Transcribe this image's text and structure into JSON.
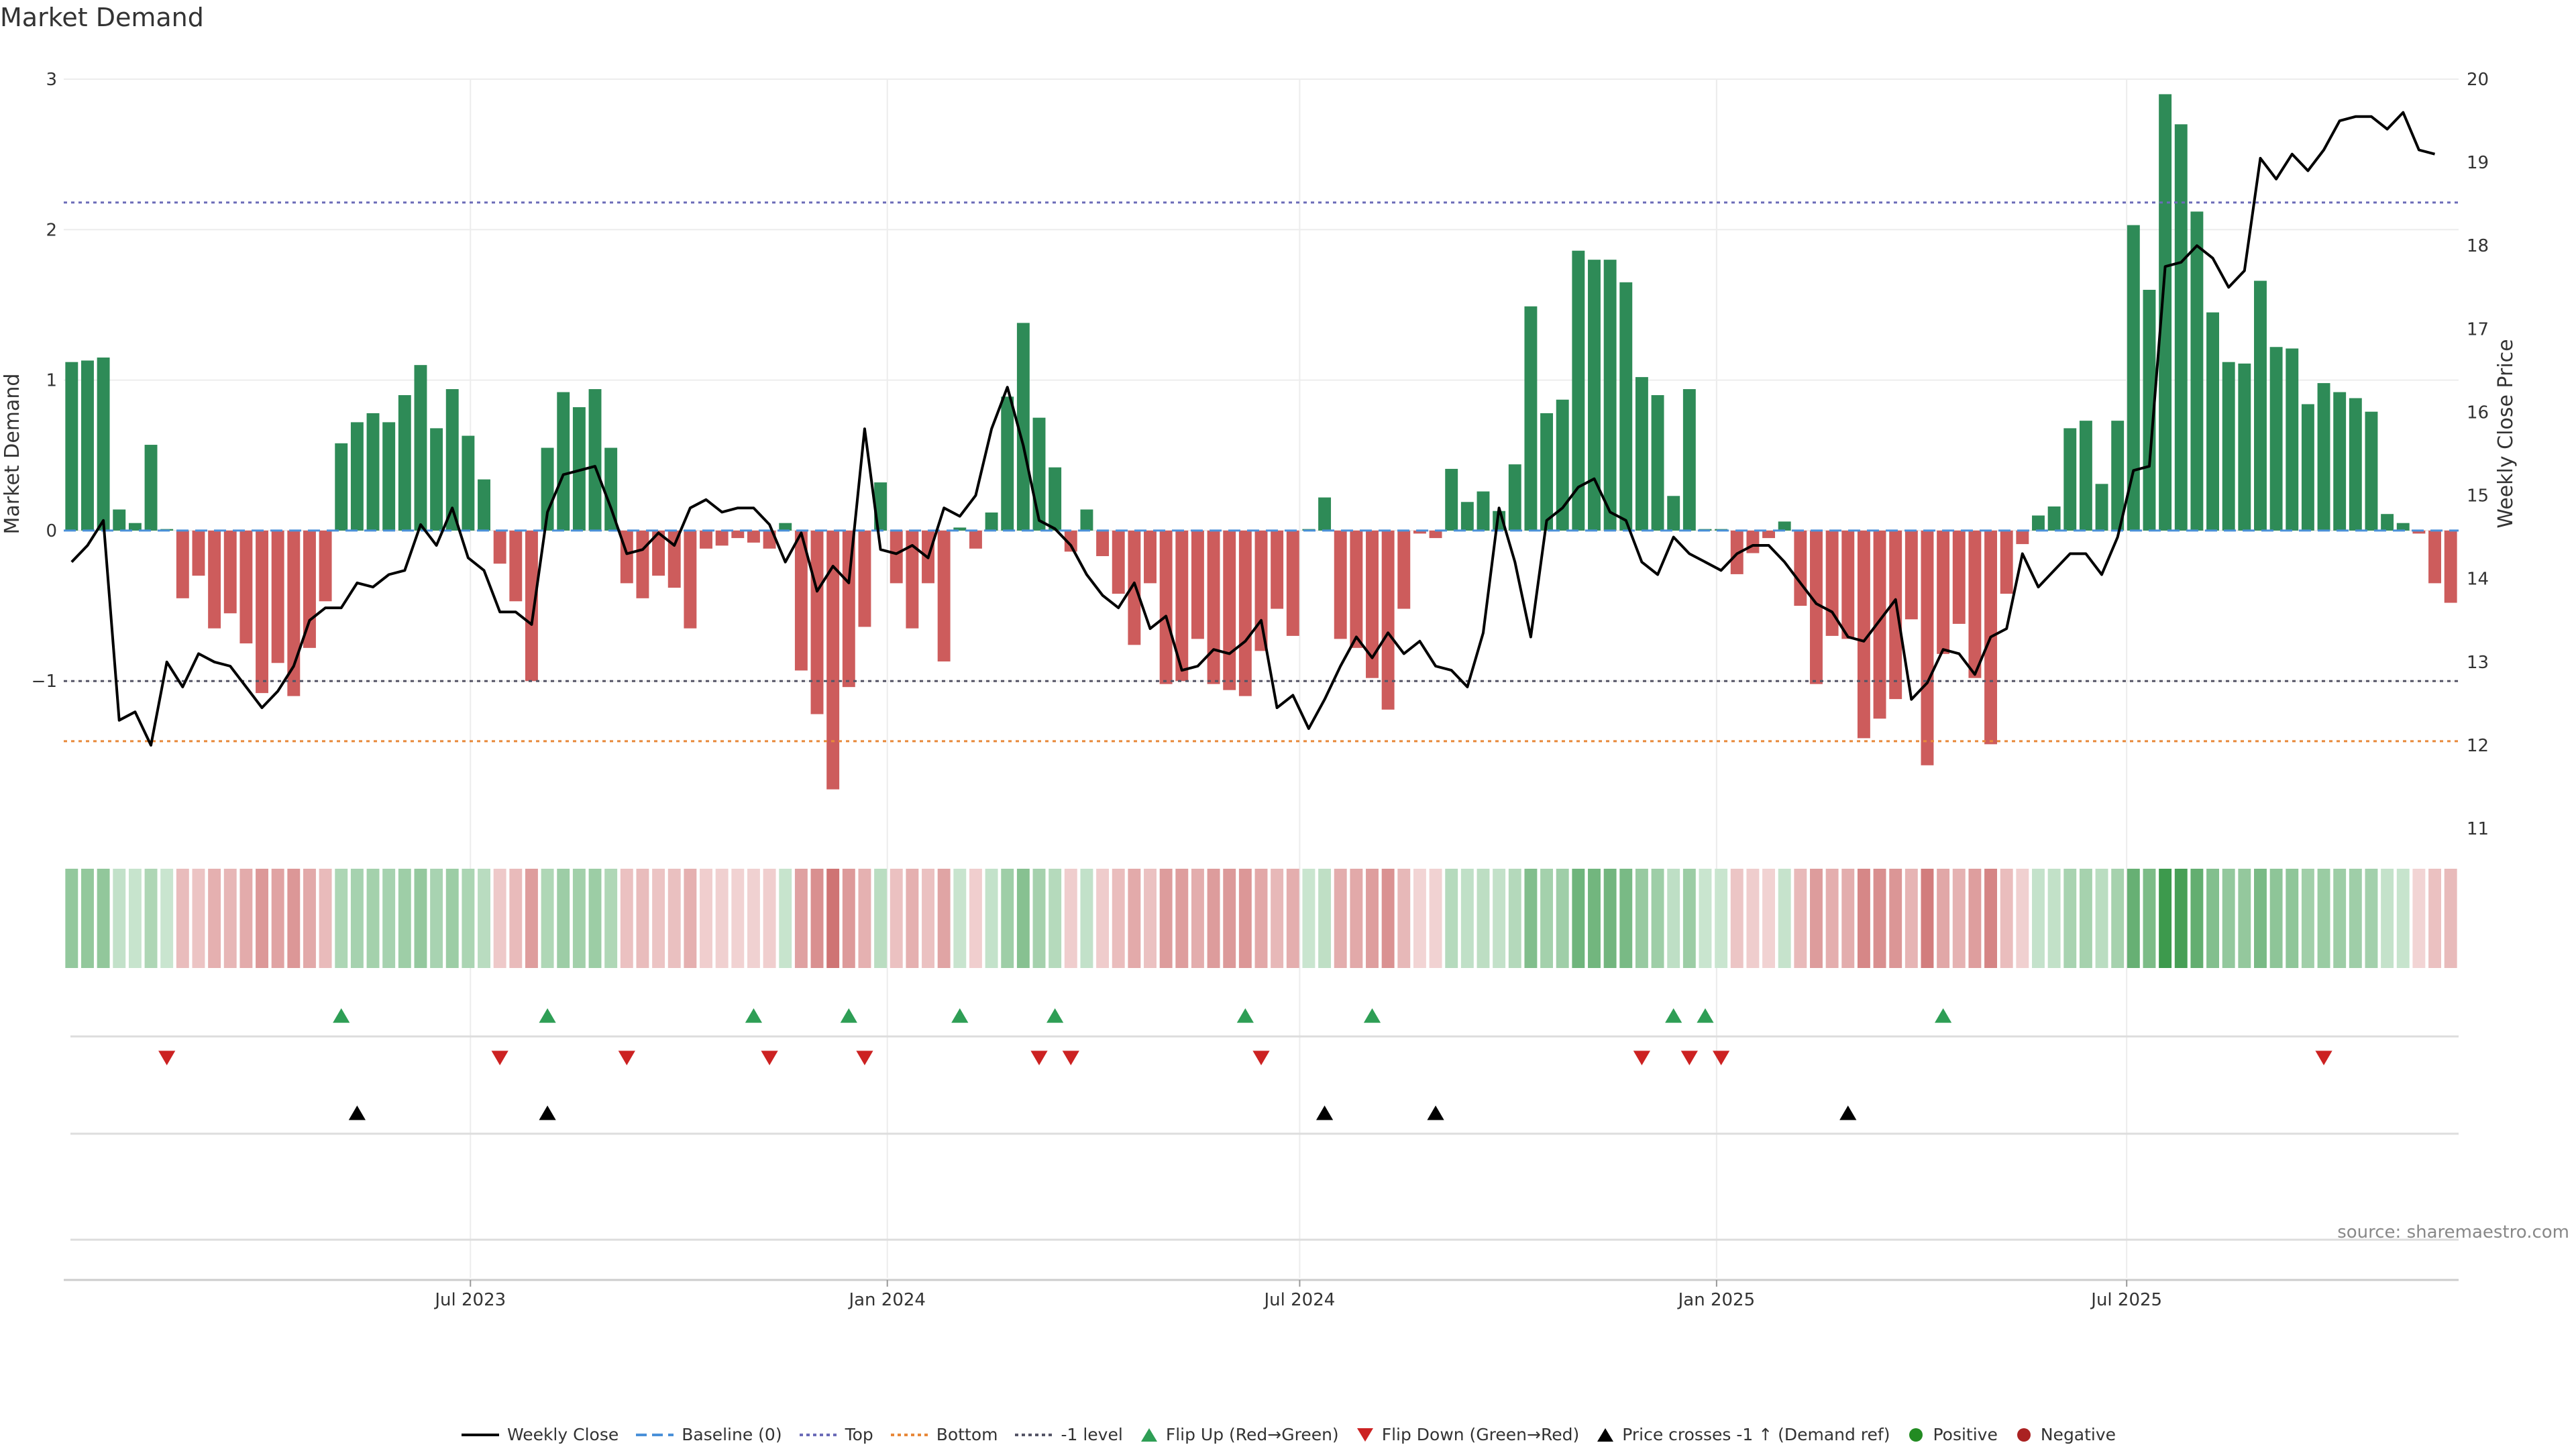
{
  "title": "Market Demand",
  "source": "source: sharemaestro.com",
  "colors": {
    "positive": "#2e8b57",
    "negative": "#cd5c5c",
    "line": "#000000",
    "top": "#6b6bb8",
    "bottom": "#e8893a",
    "minus1": "#555566",
    "baseline": "#4a90d9",
    "flip_up": "#2e9e55",
    "flip_down": "#cc2222",
    "cross": "#000000"
  },
  "chart_data": {
    "type": "bar+line",
    "x_start_date": "2023-01-06",
    "x_end_date": "2025-11-21",
    "x_tick_labels": [
      "Jul 2023",
      "Jan 2024",
      "Jul 2024",
      "Jan 2025",
      "Jul 2025"
    ],
    "x_tick_dates": [
      "2023-07-01",
      "2024-01-01",
      "2024-07-01",
      "2025-01-01",
      "2025-07-01"
    ],
    "ylabel_left": "Market Demand",
    "ylabel_right": "Weekly Close Price",
    "ylim_left": [
      -1.98,
      3.0
    ],
    "ylim_right": [
      11.0,
      20.0
    ],
    "yticks_left": [
      -1,
      0,
      1,
      2,
      3
    ],
    "yticks_right": [
      11,
      12,
      13,
      14,
      15,
      16,
      17,
      18,
      19,
      20
    ],
    "reference_lines": {
      "top": 2.18,
      "bottom": -1.4,
      "minus1": -1.0,
      "baseline": 0
    },
    "demand": [
      1.12,
      1.13,
      1.15,
      0.14,
      0.05,
      0.57,
      0.01,
      -0.45,
      -0.3,
      -0.65,
      -0.55,
      -0.75,
      -1.08,
      -0.88,
      -1.1,
      -0.78,
      -0.47,
      0.58,
      0.72,
      0.78,
      0.72,
      0.9,
      1.1,
      0.68,
      0.94,
      0.63,
      0.34,
      -0.22,
      -0.47,
      -1.0,
      0.55,
      0.92,
      0.82,
      0.94,
      0.55,
      -0.35,
      -0.45,
      -0.3,
      -0.38,
      -0.65,
      -0.12,
      -0.1,
      -0.05,
      -0.08,
      -0.12,
      0.05,
      -0.93,
      -1.22,
      -1.72,
      -1.04,
      -0.64,
      0.32,
      -0.35,
      -0.65,
      -0.35,
      -0.87,
      0.02,
      -0.12,
      0.12,
      0.89,
      1.38,
      0.75,
      0.42,
      -0.14,
      0.14,
      -0.17,
      -0.42,
      -0.76,
      -0.35,
      -1.02,
      -1.0,
      -0.72,
      -1.02,
      -1.06,
      -1.1,
      -0.8,
      -0.52,
      -0.7,
      0.01,
      0.22,
      -0.72,
      -0.78,
      -0.98,
      -1.19,
      -0.52,
      -0.02,
      -0.05,
      0.41,
      0.19,
      0.26,
      0.13,
      0.44,
      1.49,
      0.78,
      0.87,
      1.86,
      1.8,
      1.8,
      1.65,
      1.02,
      0.9,
      0.23,
      0.94,
      0.01,
      0.01,
      -0.29,
      -0.15,
      -0.05,
      0.06,
      -0.5,
      -1.02,
      -0.7,
      -0.72,
      -1.38,
      -1.25,
      -1.12,
      -0.59,
      -1.56,
      -0.82,
      -0.62,
      -0.98,
      -1.42,
      -0.42,
      -0.09,
      0.1,
      0.16,
      0.68,
      0.73,
      0.31,
      0.73,
      2.03,
      1.6,
      2.9,
      2.7,
      2.12,
      1.45,
      1.12,
      1.11,
      1.66,
      1.22,
      1.21,
      0.84,
      0.98,
      0.92,
      0.88,
      0.79,
      0.11,
      0.05,
      -0.02,
      -0.35,
      -0.48
    ],
    "price": [
      14.2,
      14.4,
      14.7,
      12.3,
      12.4,
      12.0,
      13.0,
      12.7,
      13.1,
      13.0,
      12.95,
      12.7,
      12.45,
      12.65,
      12.95,
      13.5,
      13.65,
      13.65,
      13.95,
      13.9,
      14.05,
      14.1,
      14.65,
      14.4,
      14.85,
      14.25,
      14.1,
      13.6,
      13.6,
      13.45,
      14.8,
      15.25,
      15.3,
      15.35,
      14.85,
      14.3,
      14.35,
      14.55,
      14.4,
      14.85,
      14.95,
      14.8,
      14.85,
      14.85,
      14.65,
      14.2,
      14.55,
      13.85,
      14.15,
      13.95,
      15.8,
      14.35,
      14.3,
      14.4,
      14.25,
      14.85,
      14.75,
      15.0,
      15.8,
      16.3,
      15.6,
      14.7,
      14.6,
      14.4,
      14.05,
      13.8,
      13.65,
      13.95,
      13.4,
      13.55,
      12.9,
      12.95,
      13.15,
      13.1,
      13.25,
      13.5,
      12.45,
      12.6,
      12.2,
      12.55,
      12.95,
      13.3,
      13.05,
      13.35,
      13.1,
      13.25,
      12.95,
      12.9,
      12.7,
      13.35,
      14.85,
      14.2,
      13.3,
      14.7,
      14.85,
      15.1,
      15.2,
      14.8,
      14.7,
      14.2,
      14.05,
      14.5,
      14.3,
      14.2,
      14.1,
      14.3,
      14.4,
      14.4,
      14.2,
      13.95,
      13.7,
      13.6,
      13.3,
      13.25,
      13.5,
      13.75,
      12.55,
      12.75,
      13.15,
      13.1,
      12.85,
      13.3,
      13.4,
      14.3,
      13.9,
      14.1,
      14.3,
      14.3,
      14.05,
      14.5,
      15.3,
      15.35,
      17.75,
      17.8,
      18.0,
      17.85,
      17.5,
      17.7,
      19.05,
      18.8,
      19.1,
      18.9,
      19.15,
      19.5,
      19.55,
      19.55,
      19.4,
      19.6,
      19.15,
      19.1
    ],
    "flip_up_weeks": [
      17,
      30,
      43,
      49,
      56,
      62,
      74,
      82,
      101,
      103,
      118
    ],
    "flip_down_weeks": [
      6,
      27,
      35,
      44,
      50,
      61,
      63,
      75,
      99,
      102,
      104,
      142
    ],
    "price_cross_weeks": [
      18,
      30,
      79,
      86,
      112
    ],
    "legend": [
      "Weekly Close",
      "Baseline (0)",
      "Top",
      "Bottom",
      "-1 level",
      "Flip Up (Red→Green)",
      "Flip Down (Green→Red)",
      "Price crosses -1 ↑ (Demand ref)",
      "Positive",
      "Negative"
    ]
  }
}
